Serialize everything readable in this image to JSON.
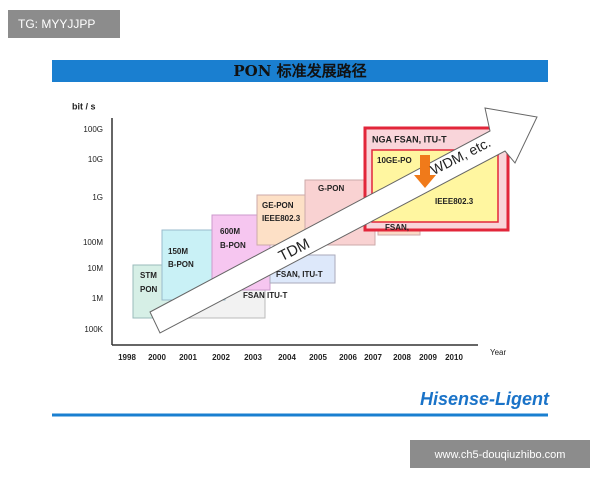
{
  "badge": "TG: MYYJJPP",
  "title": "PON 标准发展路径",
  "axis": {
    "unit": "bit / s",
    "y_labels": [
      "100G",
      "10G",
      "1G",
      "100M",
      "10M",
      "1M",
      "100K"
    ],
    "x_labels": [
      "1998",
      "2000",
      "2001",
      "2002",
      "2003",
      "2004",
      "2005",
      "2006",
      "2007",
      "2008",
      "2009",
      "2010"
    ],
    "x_title": "Year"
  },
  "boxes": [
    {
      "lines": [
        "STM",
        "PON"
      ]
    },
    {
      "lines": [
        "FSAN ITU-T"
      ]
    },
    {
      "lines": [
        "150M",
        "B-PON"
      ]
    },
    {
      "lines": [
        "600M",
        "B-PON"
      ]
    },
    {
      "lines": [
        "GE-PON",
        "IEEE802.3"
      ]
    },
    {
      "lines": [
        "FSAN, ITU-T"
      ]
    },
    {
      "lines": [
        "G-PON"
      ]
    },
    {
      "lines": [
        "FSAN,"
      ]
    },
    {
      "lines": [
        "NGA   FSAN, ITU-T"
      ]
    },
    {
      "lines": [
        "10GE-PO",
        "IEEE802.3"
      ]
    }
  ],
  "arrows": {
    "tdm": "TDM",
    "wdm": "WDM, etc."
  },
  "logo": "Hisense-Ligent",
  "watermark": "www.ch5-douqiuzhibo.com"
}
